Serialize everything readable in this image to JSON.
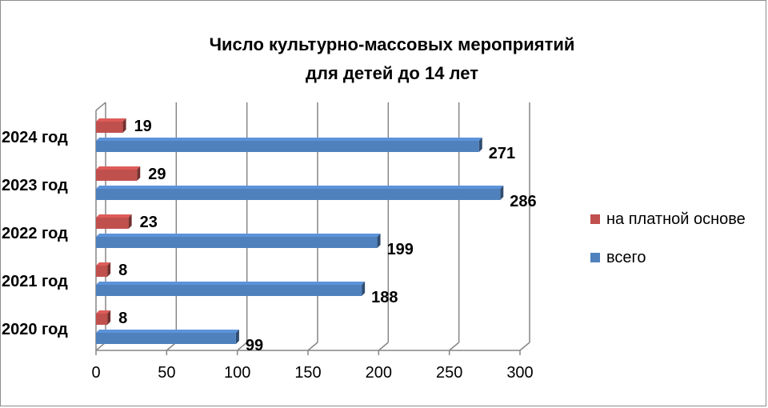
{
  "chart_data": {
    "type": "bar",
    "orientation": "horizontal",
    "title_line1": "Число культурно-массовых мероприятий",
    "title_line2": "для детей до 14 лет",
    "categories": [
      "2020 год",
      "2021 год",
      "2022 год",
      "2023 год",
      "2024 год"
    ],
    "series": [
      {
        "name": "на платной основе",
        "color": "#c0504d",
        "values": [
          8,
          8,
          23,
          29,
          19
        ]
      },
      {
        "name": "всего",
        "color": "#4f81bd",
        "values": [
          99,
          188,
          199,
          286,
          271
        ]
      }
    ],
    "xlim": [
      0,
      300
    ],
    "xticks": [
      "0",
      "50",
      "100",
      "150",
      "200",
      "250",
      "300"
    ],
    "grid": true,
    "legend_position": "right"
  }
}
